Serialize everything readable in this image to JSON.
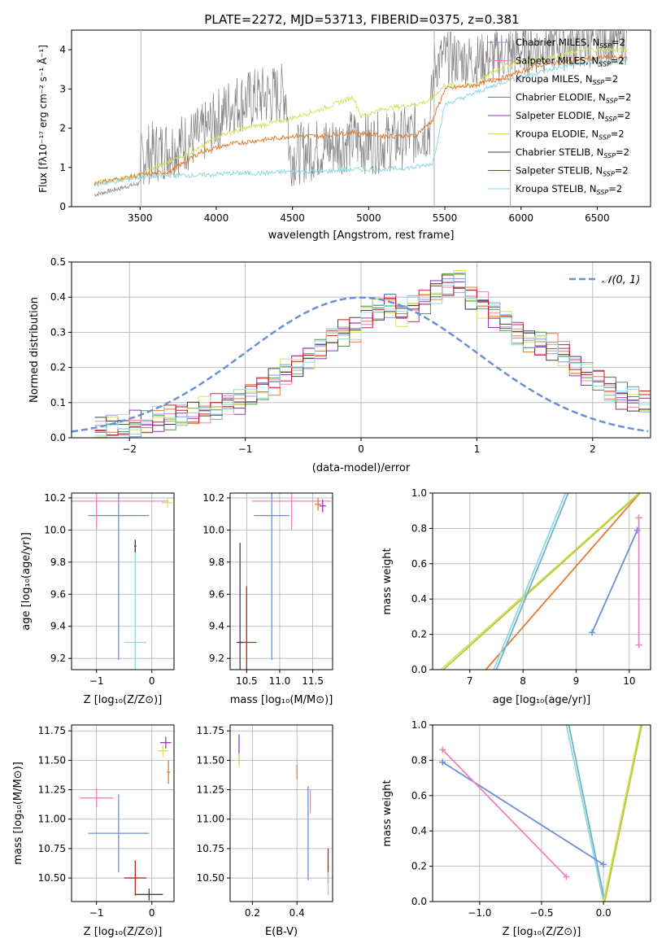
{
  "chart_data": [
    {
      "type": "line",
      "title": "PLATE=2272, MJD=53713, FIBERID=0375, z=0.381",
      "xlabel": "wavelength [Angstrom, rest frame]",
      "ylabel": "Flux [fλ10⁻¹⁷ erg cm⁻² s⁻¹ Å⁻¹]",
      "xlim": [
        3050,
        6850
      ],
      "ylim": [
        0,
        4.5
      ],
      "xticks": [
        "3500",
        "4000",
        "4500",
        "5000",
        "5500",
        "6000",
        "6500"
      ],
      "yticks": [
        "0",
        "1",
        "2",
        "3",
        "4"
      ],
      "vlines_x": [
        3505,
        5430,
        5930
      ],
      "grid": false,
      "legend_position": "top-right",
      "legend": [
        {
          "label": "Chabrier MILES, N",
          "sub": "SSP",
          "suffix": "=2",
          "color": "#7b9ce0"
        },
        {
          "label": "Salpeter MILES, N",
          "sub": "SSP",
          "suffix": "=2",
          "color": "#ee82c0"
        },
        {
          "label": "Kroupa MILES, N",
          "sub": "SSP",
          "suffix": "=2",
          "color": "#e07b30"
        },
        {
          "label": "Chabrier ELODIE, N",
          "sub": "SSP",
          "suffix": "=2",
          "color": "#4a9a4a"
        },
        {
          "label": "Salpeter ELODIE, N",
          "sub": "SSP",
          "suffix": "=2",
          "color": "#9a30c0"
        },
        {
          "label": "Kroupa ELODIE, N",
          "sub": "SSP",
          "suffix": "=2",
          "color": "#d8e060"
        },
        {
          "label": "Chabrier STELIB, N",
          "sub": "SSP",
          "suffix": "=2",
          "color": "#404040"
        },
        {
          "label": "Salpeter STELIB, N",
          "sub": "SSP",
          "suffix": "=2",
          "color": "#c02020"
        },
        {
          "label": "Kroupa STELIB, N",
          "sub": "SSP",
          "suffix": "=2",
          "color": "#90d8e0"
        }
      ],
      "series": [
        {
          "color": "#808080",
          "x": [
            3200,
            3500,
            3505,
            3700,
            3900,
            4000,
            4100,
            4300,
            4460,
            4480,
            4700,
            4900,
            5000,
            5200,
            5400,
            5430,
            5500,
            5700,
            5900,
            6000,
            6200,
            6400,
            6700
          ],
          "y": [
            0.3,
            0.6,
            1.3,
            1.5,
            1.8,
            2.2,
            2.6,
            2.8,
            2.9,
            1.3,
            1.5,
            1.7,
            1.6,
            1.7,
            2.0,
            3.6,
            3.8,
            3.7,
            3.9,
            4.0,
            4.1,
            4.2,
            4.3
          ],
          "noise": 1
        },
        {
          "color": "#d8e060",
          "x": [
            3200,
            3500,
            3600,
            3900,
            4000,
            4200,
            4450,
            4700,
            4900,
            4950,
            5100,
            5300,
            5400,
            5500,
            5700,
            5800,
            5900,
            6000,
            6200,
            6400,
            6700
          ],
          "y": [
            0.6,
            0.8,
            1.0,
            1.5,
            1.8,
            2.0,
            2.2,
            2.5,
            2.8,
            2.3,
            2.5,
            2.6,
            2.7,
            3.1,
            3.1,
            3.4,
            3.6,
            3.7,
            3.8,
            4.0,
            4.0
          ],
          "noise": 0
        },
        {
          "color": "#e07b30",
          "x": [
            3200,
            3500,
            3700,
            3900,
            4100,
            4300,
            4500,
            4700,
            4900,
            5100,
            5300,
            5420,
            5500,
            5700,
            5900,
            6100,
            6300,
            6500,
            6700
          ],
          "y": [
            0.6,
            0.8,
            0.9,
            1.4,
            1.6,
            1.7,
            1.8,
            1.8,
            1.9,
            1.8,
            1.8,
            2.2,
            3.0,
            3.1,
            3.3,
            3.6,
            3.7,
            3.8,
            3.8
          ],
          "noise": 0
        },
        {
          "color": "#90d8e0",
          "x": [
            3200,
            3500,
            3700,
            3900,
            4100,
            4300,
            4500,
            4700,
            4900,
            5100,
            5300,
            5420,
            5500,
            5700,
            5900,
            6100,
            6300,
            6500,
            6700
          ],
          "y": [
            0.55,
            0.75,
            0.8,
            0.8,
            0.85,
            0.85,
            0.9,
            0.9,
            0.95,
            0.95,
            1.0,
            1.1,
            2.6,
            2.9,
            3.2,
            3.4,
            3.6,
            3.7,
            3.7
          ],
          "noise": 0
        }
      ]
    },
    {
      "type": "line",
      "xlabel": "(data-model)/error",
      "ylabel": "Normed distribution",
      "xlim": [
        -2.5,
        2.5
      ],
      "ylim": [
        0,
        0.5
      ],
      "xticks": [
        "−2",
        "−1",
        "0",
        "1",
        "2"
      ],
      "yticks": [
        "0.0",
        "0.1",
        "0.2",
        "0.3",
        "0.4",
        "0.5"
      ],
      "grid": true,
      "legend_position": "top-right",
      "legend": [
        {
          "label": "𝒩(0, 1)",
          "color": "#6a8fd8",
          "dashed": true
        }
      ],
      "normal_curve": {
        "mean": 0,
        "std": 1
      },
      "histogram_bins": [
        -2.3,
        -2.2,
        -2.1,
        -2.0,
        -1.9,
        -1.8,
        -1.7,
        -1.6,
        -1.5,
        -1.4,
        -1.3,
        -1.2,
        -1.1,
        -1.0,
        -0.9,
        -0.8,
        -0.7,
        -0.6,
        -0.5,
        -0.4,
        -0.3,
        -0.2,
        -0.1,
        0.0,
        0.1,
        0.2,
        0.3,
        0.4,
        0.5,
        0.6,
        0.7,
        0.8,
        0.9,
        1.0,
        1.1,
        1.2,
        1.3,
        1.4,
        1.5,
        1.6,
        1.7,
        1.8,
        1.9,
        2.0,
        2.1,
        2.2,
        2.3,
        2.4,
        2.5
      ],
      "histogram_heights": [
        0.02,
        0.03,
        0.035,
        0.04,
        0.04,
        0.05,
        0.055,
        0.06,
        0.07,
        0.08,
        0.09,
        0.1,
        0.1,
        0.12,
        0.14,
        0.16,
        0.19,
        0.21,
        0.23,
        0.25,
        0.28,
        0.3,
        0.31,
        0.35,
        0.37,
        0.38,
        0.35,
        0.37,
        0.39,
        0.42,
        0.44,
        0.45,
        0.4,
        0.38,
        0.35,
        0.33,
        0.3,
        0.28,
        0.27,
        0.26,
        0.24,
        0.2,
        0.18,
        0.17,
        0.14,
        0.12,
        0.11,
        0.1
      ],
      "histogram_colors": [
        "#7b9ce0",
        "#ee82c0",
        "#e07b30",
        "#4a9a4a",
        "#9a30c0",
        "#d8e060",
        "#404040",
        "#c02020",
        "#90d8e0"
      ]
    },
    {
      "type": "scatter",
      "xlabel": "Z [log₁₀(Z/Z⊙)]",
      "ylabel": "age  [log₁₀(age/yr)]",
      "xlim": [
        -1.45,
        0.4
      ],
      "ylim": [
        9.13,
        10.23
      ],
      "xticks": [
        "−1",
        "0"
      ],
      "yticks": [
        "9.2",
        "9.4",
        "9.6",
        "9.8",
        "10.0",
        "10.2"
      ],
      "grid": true,
      "points": [
        {
          "x": -0.6,
          "y": 10.09,
          "xerr": 0.55,
          "yerr": 0.9,
          "color": "#6a8fd8"
        },
        {
          "x": -0.3,
          "y": 9.3,
          "xerr": 0.2,
          "yerr": 0.62,
          "color": "#90d8e0"
        },
        {
          "x": -1.0,
          "y": 10.18,
          "xerr": 1.3,
          "yerr": 0.18,
          "color": "#ee82c0"
        },
        {
          "x": 0.28,
          "y": 10.17,
          "xerr": 0.1,
          "yerr": 0.03,
          "color": "#d8e060"
        },
        {
          "x": -0.3,
          "y": 9.9,
          "xerr": 0.02,
          "yerr": 0.04,
          "color": "#404040"
        }
      ]
    },
    {
      "type": "scatter",
      "xlabel": "mass [log₁₀(M/M⊙)]",
      "ylabel": "",
      "xlim": [
        10.25,
        11.8
      ],
      "ylim": [
        9.13,
        10.23
      ],
      "xticks": [
        "10.5",
        "11.0",
        "11.5"
      ],
      "yticks": [
        "9.2",
        "9.4",
        "9.6",
        "9.8",
        "10.0",
        "10.2"
      ],
      "grid": true,
      "points": [
        {
          "x": 10.88,
          "y": 10.09,
          "xerr": 0.27,
          "yerr": 0.9,
          "color": "#6a8fd8"
        },
        {
          "x": 10.5,
          "y": 9.3,
          "xerr": 0.15,
          "yerr": 0.35,
          "color": "#c02020"
        },
        {
          "x": 10.4,
          "y": 9.3,
          "xerr": 0.05,
          "yerr": 0.62,
          "color": "#404040"
        },
        {
          "x": 11.18,
          "y": 10.18,
          "xerr": 0.6,
          "yerr": 0.18,
          "color": "#ee82c0"
        },
        {
          "x": 11.65,
          "y": 10.15,
          "xerr": 0.05,
          "yerr": 0.04,
          "color": "#9a30c0"
        },
        {
          "x": 11.58,
          "y": 10.16,
          "xerr": 0.05,
          "yerr": 0.04,
          "color": "#e07b30"
        }
      ]
    },
    {
      "type": "line",
      "xlabel": "age  [log₁₀(age/yr)]",
      "ylabel": "mass weight",
      "xlim": [
        6.3,
        10.4
      ],
      "ylim": [
        0,
        1
      ],
      "xticks": [
        "7",
        "8",
        "9",
        "10"
      ],
      "yticks": [
        "0.0",
        "0.2",
        "0.4",
        "0.6",
        "0.8",
        "1.0"
      ],
      "grid": true,
      "series": [
        {
          "color": "#e07b30",
          "x": [
            7.3,
            10.2
          ],
          "y": [
            0,
            1
          ]
        },
        {
          "color": "#d8e060",
          "x": [
            6.45,
            10.18
          ],
          "y": [
            0,
            1
          ]
        },
        {
          "color": "#b8c840",
          "x": [
            6.5,
            10.2
          ],
          "y": [
            0,
            1
          ]
        },
        {
          "color": "#90d8e0",
          "x": [
            7.45,
            8.8
          ],
          "y": [
            0,
            1
          ]
        },
        {
          "color": "#70b0c8",
          "x": [
            7.5,
            8.85
          ],
          "y": [
            0,
            1
          ]
        },
        {
          "color": "#6a8fd8",
          "x": [
            9.3,
            10.15
          ],
          "y": [
            0.21,
            0.79
          ],
          "markers": true
        },
        {
          "color": "#ee82c0",
          "x": [
            10.18,
            10.18
          ],
          "y": [
            0.14,
            0.86
          ],
          "markers": true
        }
      ]
    },
    {
      "type": "scatter",
      "xlabel": "Z [log₁₀(Z/Z⊙)]",
      "ylabel": "mass [log₁₀(M/M⊙)]",
      "xlim": [
        -1.45,
        0.4
      ],
      "ylim": [
        10.3,
        11.8
      ],
      "xticks": [
        "−1",
        "0"
      ],
      "yticks": [
        "10.50",
        "10.75",
        "11.00",
        "11.25",
        "11.50",
        "11.75"
      ],
      "grid": true,
      "points": [
        {
          "x": -0.6,
          "y": 10.88,
          "xerr": 0.55,
          "yerr": 0.33,
          "color": "#6a8fd8"
        },
        {
          "x": -1.0,
          "y": 11.18,
          "xerr": 0.3,
          "yerr": 0.08,
          "color": "#ee82c0"
        },
        {
          "x": -0.3,
          "y": 10.5,
          "xerr": 0.2,
          "yerr": 0.15,
          "color": "#c02020"
        },
        {
          "x": -0.05,
          "y": 10.36,
          "xerr": 0.25,
          "yerr": 0.05,
          "color": "#404040"
        },
        {
          "x": 0.25,
          "y": 11.65,
          "xerr": 0.1,
          "yerr": 0.05,
          "color": "#9a30c0"
        },
        {
          "x": 0.2,
          "y": 11.58,
          "xerr": 0.1,
          "yerr": 0.05,
          "color": "#d8e060"
        },
        {
          "x": 0.3,
          "y": 11.4,
          "xerr": 0.03,
          "yerr": 0.1,
          "color": "#e07b30"
        }
      ]
    },
    {
      "type": "scatter",
      "xlabel": "E(B-V)",
      "ylabel": "",
      "xlim": [
        0.1,
        0.56
      ],
      "ylim": [
        10.3,
        11.8
      ],
      "xticks": [
        "0.2",
        "0.4"
      ],
      "yticks": [
        "10.50",
        "10.75",
        "11.00",
        "11.25",
        "11.50",
        "11.75"
      ],
      "grid": true,
      "points": [
        {
          "x": 0.45,
          "y": 10.88,
          "xerr": 0.002,
          "yerr": 0.4,
          "color": "#6a8fd8"
        },
        {
          "x": 0.46,
          "y": 11.15,
          "xerr": 0.002,
          "yerr": 0.1,
          "color": "#ee82c0"
        },
        {
          "x": 0.14,
          "y": 11.6,
          "xerr": 0.002,
          "yerr": 0.12,
          "color": "#9a30c0"
        },
        {
          "x": 0.14,
          "y": 11.5,
          "xerr": 0.002,
          "yerr": 0.06,
          "color": "#d8e060"
        },
        {
          "x": 0.4,
          "y": 11.4,
          "xerr": 0.002,
          "yerr": 0.06,
          "color": "#e07b30"
        },
        {
          "x": 0.54,
          "y": 10.6,
          "xerr": 0.002,
          "yerr": 0.15,
          "color": "#c02020"
        },
        {
          "x": 0.54,
          "y": 10.45,
          "xerr": 0.002,
          "yerr": 0.1,
          "color": "#90d8e0"
        }
      ]
    },
    {
      "type": "line",
      "xlabel": "Z [log₁₀(Z/Z⊙)]",
      "ylabel": "mass weight",
      "xlim": [
        -1.38,
        0.38
      ],
      "ylim": [
        0,
        1
      ],
      "xticks": [
        "−1.0",
        "−0.5",
        "0.0"
      ],
      "yticks": [
        "0.0",
        "0.2",
        "0.4",
        "0.6",
        "0.8",
        "1.0"
      ],
      "grid": true,
      "series": [
        {
          "color": "#90d8e0",
          "x": [
            -0.3,
            0.0
          ],
          "y": [
            1,
            0
          ]
        },
        {
          "color": "#70b0c8",
          "x": [
            -0.28,
            0.01
          ],
          "y": [
            1,
            0
          ]
        },
        {
          "color": "#d8e060",
          "x": [
            0.0,
            0.3
          ],
          "y": [
            0,
            1
          ]
        },
        {
          "color": "#b8c840",
          "x": [
            0.01,
            0.31
          ],
          "y": [
            0,
            1
          ]
        },
        {
          "color": "#6a8fd8",
          "x": [
            -1.3,
            0.0
          ],
          "y": [
            0.79,
            0.21
          ],
          "markers": true
        },
        {
          "color": "#ee82c0",
          "x": [
            -1.3,
            -0.3
          ],
          "y": [
            0.86,
            0.14
          ],
          "markers": true
        }
      ]
    }
  ]
}
